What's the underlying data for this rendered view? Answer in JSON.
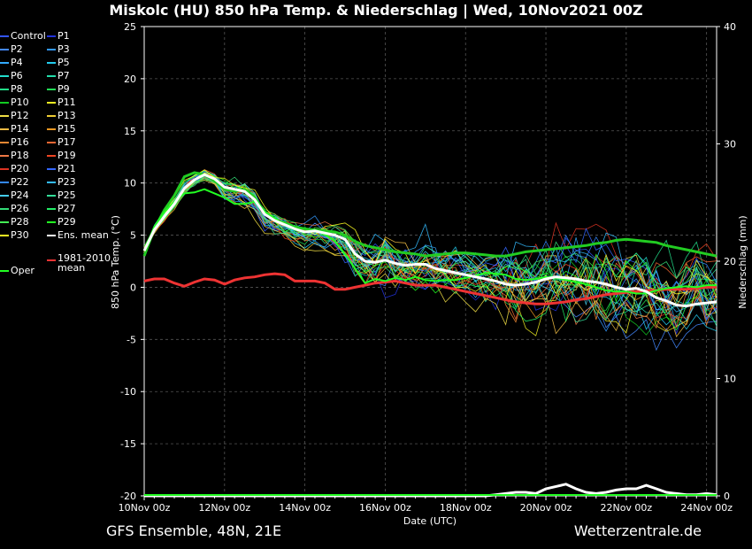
{
  "title": "Miskolc  (HU)  850 hPa Temp. & Niederschlag | Wed, 10Nov2021 00Z",
  "footer_left": "GFS Ensemble, 48N, 21E",
  "footer_right": "Wetterzentrale.de",
  "chart_data": {
    "type": "line",
    "xlabel": "Date (UTC)",
    "ylabel": "850 hPa Temp. (°C)",
    "y2label": "Niederschlag (mm)",
    "ylim": [
      -20,
      25
    ],
    "y2lim": [
      0,
      40
    ],
    "yticks": [
      "25",
      "20",
      "15",
      "10",
      "5",
      "0",
      "-5",
      "-10",
      "-15",
      "-20"
    ],
    "y2ticks": [
      "40",
      "30",
      "20",
      "10",
      "0"
    ],
    "xticks": [
      "10Nov 00z",
      "12Nov 00z",
      "14Nov 00z",
      "16Nov 00z",
      "18Nov 00z",
      "20Nov 00z",
      "22Nov 00z",
      "24Nov 00z"
    ],
    "x_days": [
      0,
      14.25
    ],
    "grid": true,
    "legend": [
      {
        "name": "Control",
        "color": "#3355ff"
      },
      {
        "name": "P1",
        "color": "#2233dd"
      },
      {
        "name": "P2",
        "color": "#4488ff"
      },
      {
        "name": "P3",
        "color": "#3399ff"
      },
      {
        "name": "P4",
        "color": "#33aaff"
      },
      {
        "name": "P5",
        "color": "#22ccee"
      },
      {
        "name": "P6",
        "color": "#22ddcc"
      },
      {
        "name": "P7",
        "color": "#22ddaa"
      },
      {
        "name": "P8",
        "color": "#22dd88"
      },
      {
        "name": "P9",
        "color": "#22dd55"
      },
      {
        "name": "P10",
        "color": "#11cc22"
      },
      {
        "name": "P11",
        "color": "#eeee22"
      },
      {
        "name": "P12",
        "color": "#eedd44"
      },
      {
        "name": "P13",
        "color": "#eecc33"
      },
      {
        "name": "P14",
        "color": "#eebb44"
      },
      {
        "name": "P15",
        "color": "#ee9922"
      },
      {
        "name": "P16",
        "color": "#ee8833"
      },
      {
        "name": "P17",
        "color": "#ee6633"
      },
      {
        "name": "P18",
        "color": "#ee7744"
      },
      {
        "name": "P19",
        "color": "#ee4422"
      },
      {
        "name": "P20",
        "color": "#dd3322"
      },
      {
        "name": "P21",
        "color": "#3366ff"
      },
      {
        "name": "P22",
        "color": "#3388ff"
      },
      {
        "name": "P23",
        "color": "#33bbff"
      },
      {
        "name": "P24",
        "color": "#44ccee"
      },
      {
        "name": "P25",
        "color": "#33dd99"
      },
      {
        "name": "P26",
        "color": "#33dd77"
      },
      {
        "name": "P27",
        "color": "#22ee66"
      },
      {
        "name": "P28",
        "color": "#44ee55"
      },
      {
        "name": "P29",
        "color": "#22ff22"
      },
      {
        "name": "P30",
        "color": "#ffff22"
      },
      {
        "name": "Ens. mean",
        "color": "#ffffff"
      },
      {
        "name": "Oper",
        "color": "#22ff22"
      },
      {
        "name": "1981-2010 mean",
        "color": "#ee3333"
      }
    ],
    "ens_mean": {
      "x": [
        0,
        0.25,
        0.5,
        0.75,
        1,
        1.25,
        1.5,
        1.75,
        2,
        2.25,
        2.5,
        2.75,
        3,
        3.25,
        3.5,
        3.75,
        4,
        4.25,
        4.5,
        4.75,
        5,
        5.25,
        5.5,
        5.75,
        6,
        6.25,
        6.5,
        6.75,
        7,
        7.25,
        7.5,
        7.75,
        8,
        8.25,
        8.5,
        8.75,
        9,
        9.25,
        9.5,
        9.75,
        10,
        10.25,
        10.5,
        10.75,
        11,
        11.25,
        11.5,
        11.75,
        12,
        12.25,
        12.5,
        12.75,
        13,
        13.25,
        13.5,
        13.75,
        14,
        14.25
      ],
      "temp": [
        3.5,
        5.5,
        6.8,
        8,
        9.5,
        10.3,
        10.8,
        10.4,
        9.6,
        9.4,
        9.2,
        8.4,
        7,
        6.4,
        6,
        5.6,
        5.3,
        5.4,
        5.2,
        5,
        4.6,
        3.2,
        2.5,
        2.4,
        2.6,
        2.3,
        2.1,
        2.2,
        2.2,
        1.8,
        1.6,
        1.4,
        1.2,
        1,
        0.8,
        0.6,
        0.3,
        0.2,
        0.3,
        0.5,
        0.8,
        1,
        0.9,
        0.8,
        0.6,
        0.5,
        0.3,
        0,
        -0.2,
        -0.1,
        -0.4,
        -1.0,
        -1.3,
        -1.7,
        -1.8,
        -1.6,
        -1.5,
        -1.4
      ],
      "precip": [
        0,
        0,
        0,
        0,
        0,
        0,
        0,
        0,
        0,
        0,
        0,
        0,
        0,
        0,
        0,
        0,
        0,
        0,
        0,
        0,
        0,
        0,
        0,
        0,
        0,
        0,
        0,
        0,
        0,
        0,
        0,
        0,
        0,
        0,
        0,
        0.1,
        0.2,
        0.3,
        0.3,
        0.2,
        0.6,
        0.8,
        1,
        0.6,
        0.3,
        0.2,
        0.3,
        0.5,
        0.6,
        0.6,
        0.9,
        0.6,
        0.3,
        0.2,
        0.1,
        0.1,
        0.2,
        0.1
      ]
    },
    "oper": {
      "temp": [
        3.5,
        5.8,
        7.2,
        8.2,
        9,
        9.1,
        9.4,
        9,
        8.6,
        8,
        8,
        8.2,
        7.3,
        6.6,
        6,
        5.5,
        5.3,
        5.5,
        5.1,
        4.4,
        3.2,
        1.8,
        0.4,
        0.8,
        0.6,
        0.9,
        0.7,
        1,
        0.7,
        0.6,
        0.7,
        0.7,
        0.9,
        1.1,
        1.4,
        1.3,
        1.2,
        0.8,
        0.7,
        0.8,
        1.0,
        0.9,
        0.7,
        0.5,
        0.3,
        0.0,
        -0.3,
        -0.4,
        -0.4,
        -0.6,
        -0.6,
        -0.3,
        -0.1,
        0.0,
        0.1,
        0.0,
        0.2,
        0.2
      ]
    },
    "green_mean_like": {
      "temp": [
        3.0,
        5.6,
        7.4,
        8.8,
        10.6,
        11.0,
        10.8,
        10.2,
        9.4,
        9.2,
        9.4,
        8.6,
        7.2,
        6.4,
        6.2,
        5.8,
        5.6,
        5.5,
        5.4,
        5.3,
        5.0,
        4.4,
        4.0,
        3.8,
        3.6,
        3.4,
        3.3,
        3.2,
        3.0,
        3.1,
        3.2,
        3.3,
        3.3,
        3.2,
        3.1,
        3.0,
        3.0,
        3.2,
        3.4,
        3.5,
        3.6,
        3.7,
        3.8,
        3.9,
        4.0,
        4.2,
        4.3,
        4.5,
        4.6,
        4.5,
        4.4,
        4.3,
        4.0,
        3.8,
        3.6,
        3.4,
        3.2,
        3.0
      ]
    },
    "clim_mean": {
      "temp": [
        0.6,
        0.8,
        0.8,
        0.4,
        0.1,
        0.5,
        0.8,
        0.7,
        0.3,
        0.7,
        0.9,
        1.0,
        1.2,
        1.3,
        1.2,
        0.6,
        0.6,
        0.6,
        0.4,
        -0.2,
        -0.2,
        0.0,
        0.2,
        0.4,
        0.5,
        0.6,
        0.4,
        0.2,
        0.2,
        0.2,
        0.0,
        -0.2,
        -0.4,
        -0.6,
        -0.8,
        -1.0,
        -1.2,
        -1.4,
        -1.5,
        -1.6,
        -1.6,
        -1.5,
        -1.4,
        -1.2,
        -1.1,
        -0.9,
        -0.7,
        -0.6,
        -0.5,
        -0.4,
        -0.3,
        -0.3,
        -0.2,
        -0.2,
        -0.2,
        -0.1,
        0.0,
        0.0
      ]
    }
  }
}
